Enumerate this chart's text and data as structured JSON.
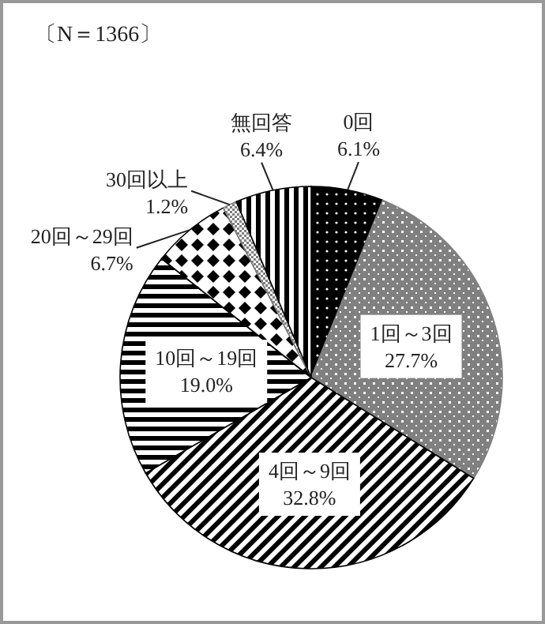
{
  "chart_data": {
    "type": "pie",
    "title": "〔N＝1366〕",
    "categories": [
      "0回",
      "1回～3回",
      "4回～9回",
      "10回～19回",
      "20回～29回",
      "30回以上",
      "無回答"
    ],
    "values": [
      6.1,
      27.7,
      32.8,
      19.0,
      6.7,
      1.2,
      6.4
    ],
    "colors": [
      "#000000",
      "#808080",
      "#000000",
      "#000000",
      "#000000",
      "#808080",
      "#000000"
    ],
    "value_labels": [
      "6.1%",
      "27.7%",
      "32.8%",
      "19.0%",
      "6.7%",
      "1.2%",
      "6.4%"
    ]
  }
}
